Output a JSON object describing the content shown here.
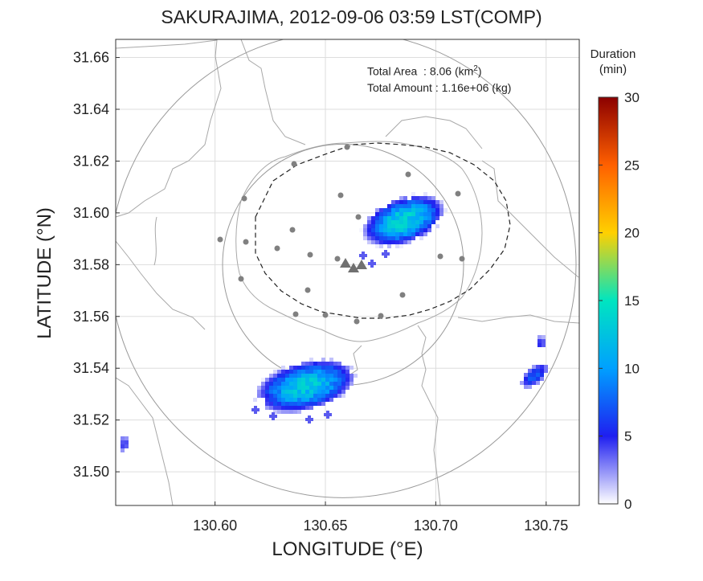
{
  "title": "SAKURAJIMA, 2012-09-06 03:59 LST(COMP)",
  "xlabel": "LONGITUDE (°E)",
  "ylabel": "LATITUDE (°N)",
  "info": {
    "area_label": "Total Area",
    "area_value": ": 8.06 (km",
    "area_sup": "2",
    "area_close": ")",
    "amount_label": "Total Amount",
    "amount_value": ": 1.16e+06 (kg)"
  },
  "colorbar": {
    "title_line1": "Duration",
    "title_line2": "(min)",
    "ticks": [
      "0",
      "5",
      "10",
      "15",
      "20",
      "25",
      "30"
    ],
    "range": [
      0,
      30
    ],
    "colors": [
      "#ffffff",
      "#1f1ff0",
      "#00a0ff",
      "#00e5c0",
      "#ffd000",
      "#ff6000",
      "#8b0000"
    ]
  },
  "axes": {
    "xlim": [
      130.555,
      130.765
    ],
    "ylim": [
      31.487,
      31.667
    ],
    "xticks": [
      "130.60",
      "130.65",
      "130.70",
      "130.75"
    ],
    "yticks": [
      "31.50",
      "31.52",
      "31.54",
      "31.56",
      "31.58",
      "31.60",
      "31.62",
      "31.64",
      "31.66"
    ],
    "grid": true
  },
  "volcano": {
    "lon": 130.658,
    "lat": 31.58
  },
  "colors": {
    "outer_ring": "#9a9a9a",
    "stations": "#808080",
    "coast": "#a8a8a8",
    "grid": "#dddddd"
  }
}
